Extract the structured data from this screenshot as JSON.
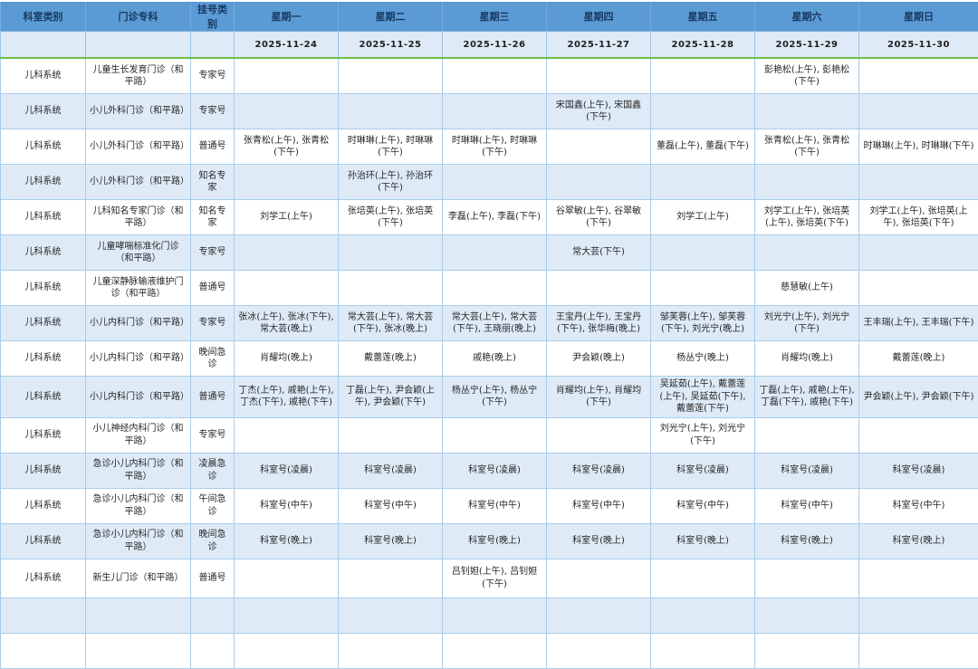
{
  "colors": {
    "header_bg": "#5B9BD5",
    "header_text": "#17375E",
    "date_row_bg": "#DEEBF7",
    "alt_row_bg": "#DEEBF7",
    "row_bg": "#FFFFFF",
    "grid_border": "#9CC3E5",
    "green_divider": "#6FBF4B"
  },
  "table": {
    "columns": [
      "科室类别",
      "门诊专科",
      "挂号类别",
      "星期一",
      "星期二",
      "星期三",
      "星期四",
      "星期五",
      "星期六",
      "星期日"
    ],
    "dates": [
      "2025-11-24",
      "2025-11-25",
      "2025-11-26",
      "2025-11-27",
      "2025-11-28",
      "2025-11-29",
      "2025-11-30"
    ],
    "rows": [
      {
        "category": "儿科系统",
        "specialty": "儿童生长发育门诊（和平路）",
        "reg_type": "专家号",
        "days": [
          "",
          "",
          "",
          "",
          "",
          "彭艳松(上午), 彭艳松(下午)",
          ""
        ]
      },
      {
        "category": "儿科系统",
        "specialty": "小儿外科门诊（和平路）",
        "reg_type": "专家号",
        "days": [
          "",
          "",
          "",
          "宋国鑫(上午), 宋国鑫(下午)",
          "",
          "",
          ""
        ]
      },
      {
        "category": "儿科系统",
        "specialty": "小儿外科门诊（和平路）",
        "reg_type": "普通号",
        "days": [
          "张青松(上午), 张青松(下午)",
          "时琳琳(上午), 时琳琳(下午)",
          "时琳琳(上午), 时琳琳(下午)",
          "",
          "董磊(上午), 董磊(下午)",
          "张青松(上午), 张青松(下午)",
          "时琳琳(上午), 时琳琳(下午)"
        ]
      },
      {
        "category": "儿科系统",
        "specialty": "小儿外科门诊（和平路）",
        "reg_type": "知名专家",
        "days": [
          "",
          "孙治环(上午), 孙治环(下午)",
          "",
          "",
          "",
          "",
          ""
        ]
      },
      {
        "category": "儿科系统",
        "specialty": "儿科知名专家门诊（和平路）",
        "reg_type": "知名专家",
        "days": [
          "刘学工(上午)",
          "张培英(上午), 张培英(下午)",
          "李磊(上午), 李磊(下午)",
          "谷翠敏(上午), 谷翠敏(下午)",
          "刘学工(上午)",
          "刘学工(上午), 张培英(上午), 张培英(下午)",
          "刘学工(上午), 张培英(上午), 张培英(下午)"
        ]
      },
      {
        "category": "儿科系统",
        "specialty": "儿童哮喘标准化门诊（和平路）",
        "reg_type": "专家号",
        "days": [
          "",
          "",
          "",
          "常大芸(下午)",
          "",
          "",
          ""
        ]
      },
      {
        "category": "儿科系统",
        "specialty": "儿童深静脉输液维护门诊（和平路）",
        "reg_type": "普通号",
        "days": [
          "",
          "",
          "",
          "",
          "",
          "慈慧敏(上午)",
          ""
        ]
      },
      {
        "category": "儿科系统",
        "specialty": "小儿内科门诊（和平路）",
        "reg_type": "专家号",
        "days": [
          "张冰(上午), 张冰(下午), 常大芸(晚上)",
          "常大芸(上午), 常大芸(下午), 张冰(晚上)",
          "常大芸(上午), 常大芸(下午), 王晓丽(晚上)",
          "王宝丹(上午), 王宝丹(下午), 张华梅(晚上)",
          "邹芙蓉(上午), 邹芙蓉(下午), 刘光宁(晚上)",
          "刘光宁(上午), 刘光宁(下午)",
          "王丰瑞(上午), 王丰瑞(下午)"
        ]
      },
      {
        "category": "儿科系统",
        "specialty": "小儿内科门诊（和平路）",
        "reg_type": "晚间急诊",
        "days": [
          "肖耀均(晚上)",
          "戴蕾莲(晚上)",
          "戚艳(晚上)",
          "尹会颖(晚上)",
          "杨丛宁(晚上)",
          "肖耀均(晚上)",
          "戴蕾莲(晚上)"
        ]
      },
      {
        "category": "儿科系统",
        "specialty": "小儿内科门诊（和平路）",
        "reg_type": "普通号",
        "days": [
          "丁杰(上午), 戚艳(上午), 丁杰(下午), 戚艳(下午)",
          "丁磊(上午), 尹会颖(上午), 尹会颖(下午)",
          "杨丛宁(上午), 杨丛宁(下午)",
          "肖耀均(上午), 肖耀均(下午)",
          "吴延茹(上午), 戴蕾莲(上午), 吴延茹(下午), 戴蕾莲(下午)",
          "丁磊(上午), 戚艳(上午), 丁磊(下午), 戚艳(下午)",
          "尹会颖(上午), 尹会颖(下午)"
        ]
      },
      {
        "category": "儿科系统",
        "specialty": "小儿神经内科门诊（和平路）",
        "reg_type": "专家号",
        "days": [
          "",
          "",
          "",
          "",
          "刘光宁(上午), 刘光宁(下午)",
          "",
          ""
        ]
      },
      {
        "category": "儿科系统",
        "specialty": "急诊小儿内科门诊（和平路）",
        "reg_type": "凌晨急诊",
        "days": [
          "科室号(凌晨)",
          "科室号(凌晨)",
          "科室号(凌晨)",
          "科室号(凌晨)",
          "科室号(凌晨)",
          "科室号(凌晨)",
          "科室号(凌晨)"
        ]
      },
      {
        "category": "儿科系统",
        "specialty": "急诊小儿内科门诊（和平路）",
        "reg_type": "午间急诊",
        "days": [
          "科室号(中午)",
          "科室号(中午)",
          "科室号(中午)",
          "科室号(中午)",
          "科室号(中午)",
          "科室号(中午)",
          "科室号(中午)"
        ]
      },
      {
        "category": "儿科系统",
        "specialty": "急诊小儿内科门诊（和平路）",
        "reg_type": "晚间急诊",
        "days": [
          "科室号(晚上)",
          "科室号(晚上)",
          "科室号(晚上)",
          "科室号(晚上)",
          "科室号(晚上)",
          "科室号(晚上)",
          "科室号(晚上)"
        ]
      },
      {
        "category": "儿科系统",
        "specialty": "新生儿门诊（和平路）",
        "reg_type": "普通号",
        "days": [
          "",
          "",
          "吕钊妲(上午), 吕钊妲(下午)",
          "",
          "",
          "",
          ""
        ]
      },
      {
        "category": "",
        "specialty": "",
        "reg_type": "",
        "days": [
          "",
          "",
          "",
          "",
          "",
          "",
          ""
        ]
      },
      {
        "category": "",
        "specialty": "",
        "reg_type": "",
        "days": [
          "",
          "",
          "",
          "",
          "",
          "",
          ""
        ]
      }
    ]
  }
}
